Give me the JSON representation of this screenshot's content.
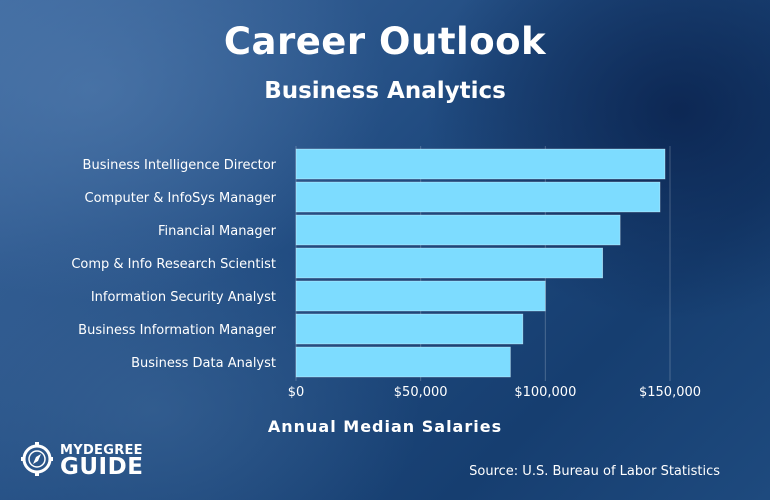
{
  "chart_data": {
    "type": "bar",
    "orientation": "horizontal",
    "title": "Career Outlook",
    "subtitle": "Business Analytics",
    "xlabel": "Annual Median Salaries",
    "ylabel": "",
    "categories": [
      "Business Intelligence Director",
      "Computer & InfoSys Manager",
      "Financial Manager",
      "Comp & Info Research Scientist",
      "Information Security Analyst",
      "Business Information Manager",
      "Business Data Analyst"
    ],
    "values": [
      148000,
      146000,
      130000,
      123000,
      100000,
      91000,
      86000
    ],
    "xlim": [
      0,
      150000
    ],
    "xticks": [
      0,
      50000,
      100000,
      150000
    ],
    "xtick_labels": [
      "$0",
      "$50,000",
      "$100,000",
      "$150,000"
    ],
    "grid": "vertical",
    "bar_color": "#7ddcff"
  },
  "source": "Source: U.S. Bureau of Labor Statistics",
  "logo": {
    "top": "MYDEGREE",
    "bottom": "GUIDE",
    "icon": "compass-icon"
  }
}
